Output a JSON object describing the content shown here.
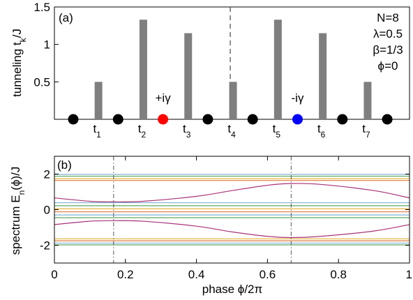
{
  "chart_data": [
    {
      "panel": "(a)",
      "type": "bar",
      "ylabel": "tunneling t",
      "ylabel_sub": "k",
      "ylabel_suffix": "/J",
      "ylim": [
        0,
        1.5
      ],
      "yticks": [
        0.5,
        1,
        1.5
      ],
      "ytick_labels": [
        "0.5",
        "1",
        "1.5"
      ],
      "categories": [
        "t1",
        "t2",
        "t3",
        "t4",
        "t5",
        "t6",
        "t7"
      ],
      "tick_main": "t",
      "tick_subs": [
        "1",
        "2",
        "3",
        "4",
        "5",
        "6",
        "7"
      ],
      "values": [
        0.5,
        1.33,
        1.15,
        0.5,
        1.33,
        1.15,
        0.5
      ],
      "bar_color": "#7f7f7f",
      "sites": 8,
      "site_colors": [
        "#000000",
        "#000000",
        "#ff0000",
        "#000000",
        "#000000",
        "#0000ff",
        "#000000",
        "#000000"
      ],
      "site_labels": [
        {
          "site": 3,
          "text": "+iγ"
        },
        {
          "site": 6,
          "text": "-iγ"
        }
      ],
      "dashed_line_at_bond": 4,
      "params": [
        "N=8",
        "λ=0.5",
        "β=1/3",
        "ϕ=0"
      ]
    },
    {
      "panel": "(b)",
      "type": "line",
      "xlabel": "phase ϕ/2π",
      "ylabel": "spectrum E",
      "ylabel_sub": "n",
      "ylabel_suffix": "(ϕ)/J",
      "xlim": [
        0,
        1
      ],
      "ylim": [
        -3,
        3
      ],
      "xticks": [
        0,
        0.2,
        0.4,
        0.6,
        0.8,
        1
      ],
      "xtick_labels": [
        "0",
        "0.2",
        "0.4",
        "0.6",
        "0.8",
        "1"
      ],
      "yticks": [
        -2,
        0,
        2
      ],
      "ytick_labels": [
        "-2",
        "0",
        "2"
      ],
      "vlines": [
        0.1667,
        0.6667
      ],
      "series": [
        {
          "color": "#a83277",
          "x": [
            0,
            0.1,
            0.1667,
            0.25,
            0.4,
            0.5,
            0.6,
            0.6667,
            0.75,
            0.9,
            1.0
          ],
          "values": [
            0.66,
            0.47,
            0.44,
            0.47,
            0.75,
            1.07,
            1.37,
            1.47,
            1.42,
            1.07,
            0.66
          ]
        },
        {
          "color": "#a83277",
          "x": [
            0,
            0.1,
            0.1667,
            0.25,
            0.4,
            0.5,
            0.6,
            0.6667,
            0.75,
            0.9,
            1.0
          ],
          "values": [
            -0.84,
            -0.65,
            -0.62,
            -0.65,
            -0.93,
            -1.25,
            -1.5,
            -1.57,
            -1.5,
            -1.2,
            -0.84
          ]
        },
        {
          "color": "#7fb2d5",
          "x": [
            0,
            1
          ],
          "values": [
            1.98,
            1.98
          ]
        },
        {
          "color": "#5da85d",
          "x": [
            0,
            1
          ],
          "values": [
            1.88,
            1.88
          ]
        },
        {
          "color": "#e5b43c",
          "x": [
            0,
            1
          ],
          "values": [
            1.74,
            1.74
          ]
        },
        {
          "color": "#e07a3a",
          "x": [
            0,
            1
          ],
          "values": [
            1.64,
            1.64
          ]
        },
        {
          "color": "#7fb2d5",
          "x": [
            0,
            1
          ],
          "values": [
            0.39,
            0.39
          ]
        },
        {
          "color": "#5da85d",
          "x": [
            0,
            1
          ],
          "values": [
            0.22,
            0.22
          ]
        },
        {
          "color": "#e5b43c",
          "x": [
            0,
            1
          ],
          "values": [
            0.05,
            0.05
          ]
        },
        {
          "color": "#e07a3a",
          "x": [
            0,
            1
          ],
          "values": [
            -0.12,
            -0.12
          ]
        },
        {
          "color": "#7fb2d5",
          "x": [
            0,
            1
          ],
          "values": [
            -0.3,
            -0.3
          ]
        },
        {
          "color": "#5da85d",
          "x": [
            0,
            1
          ],
          "values": [
            -0.45,
            -0.45
          ]
        },
        {
          "color": "#e5b43c",
          "x": [
            0,
            1
          ],
          "values": [
            -1.64,
            -1.64
          ]
        },
        {
          "color": "#e07a3a",
          "x": [
            0,
            1
          ],
          "values": [
            -1.75,
            -1.75
          ]
        },
        {
          "color": "#7fb2d5",
          "x": [
            0,
            1
          ],
          "values": [
            -1.88,
            -1.88
          ]
        },
        {
          "color": "#5da85d",
          "x": [
            0,
            1
          ],
          "values": [
            -1.98,
            -1.98
          ]
        }
      ]
    }
  ]
}
